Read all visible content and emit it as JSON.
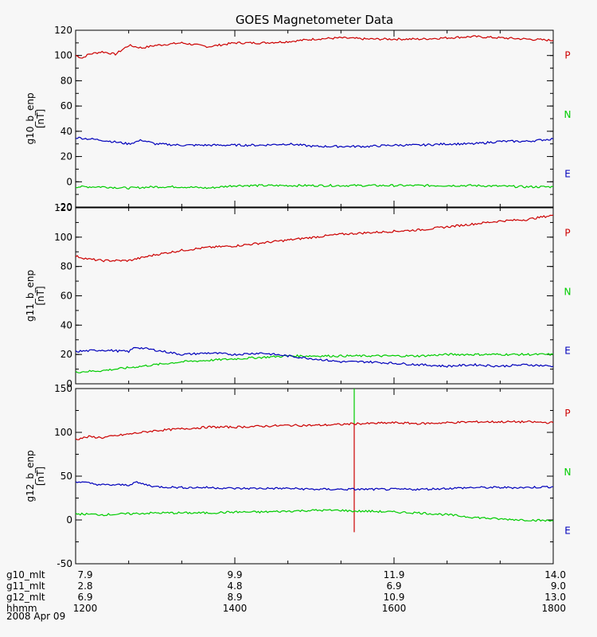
{
  "chart_data": {
    "type": "line",
    "title": "GOES Magnetometer Data",
    "x_unit": "hhmm (UT)",
    "panels": [
      {
        "id": "g10",
        "ylabel": "g10_b_enp",
        "yunit": "[nT]",
        "ylim": [
          -20,
          120
        ],
        "yticks": [
          -20,
          0,
          20,
          40,
          60,
          80,
          100,
          120
        ],
        "series": [
          {
            "name": "P",
            "color": "#cc0000",
            "x": [
              1200,
              1205,
              1210,
              1220,
              1230,
              1240,
              1250,
              1300,
              1320,
              1340,
              1400,
              1420,
              1440,
              1500,
              1520,
              1540,
              1600,
              1620,
              1640,
              1700,
              1720,
              1740,
              1800
            ],
            "y": [
              100,
              98,
              101,
              103,
              101,
              108,
              106,
              108,
              110,
              107,
              110,
              110,
              111,
              113,
              114,
              113,
              113,
              113,
              114,
              115,
              114,
              113,
              112
            ]
          },
          {
            "name": "N",
            "color": "#00cc00",
            "x": [
              1200,
              1220,
              1240,
              1300,
              1320,
              1340,
              1400,
              1440,
              1500,
              1540,
              1600,
              1640,
              1700,
              1740,
              1800
            ],
            "y": [
              -4,
              -4,
              -5,
              -4,
              -4,
              -5,
              -3,
              -3,
              -3,
              -3,
              -3,
              -3,
              -3,
              -4,
              -4
            ]
          },
          {
            "name": "E",
            "color": "#0000bb",
            "x": [
              1200,
              1210,
              1220,
              1240,
              1250,
              1300,
              1320,
              1340,
              1400,
              1420,
              1440,
              1500,
              1520,
              1540,
              1600,
              1620,
              1640,
              1700,
              1720,
              1740,
              1800
            ],
            "y": [
              35,
              34,
              33,
              30,
              33,
              30,
              29,
              29,
              29,
              29,
              30,
              28,
              28,
              28,
              29,
              29,
              30,
              30,
              32,
              32,
              34
            ]
          }
        ]
      },
      {
        "id": "g11",
        "ylabel": "g11_b_enp",
        "yunit": "[nT]",
        "ylim": [
          0,
          120
        ],
        "yticks": [
          0,
          20,
          40,
          60,
          80,
          100,
          120
        ],
        "series": [
          {
            "name": "P",
            "color": "#cc0000",
            "x": [
              1200,
              1210,
              1220,
              1240,
              1300,
              1320,
              1340,
              1400,
              1420,
              1440,
              1500,
              1520,
              1540,
              1600,
              1620,
              1640,
              1700,
              1720,
              1740,
              1800
            ],
            "y": [
              87,
              85,
              84,
              84,
              88,
              91,
              93,
              94,
              96,
              98,
              100,
              102,
              103,
              104,
              105,
              107,
              109,
              111,
              112,
              115
            ]
          },
          {
            "name": "N",
            "color": "#00cc00",
            "x": [
              1200,
              1220,
              1240,
              1300,
              1320,
              1340,
              1400,
              1420,
              1440,
              1500,
              1520,
              1540,
              1600,
              1620,
              1640,
              1700,
              1720,
              1740,
              1800
            ],
            "y": [
              8,
              9,
              11,
              13,
              15,
              16,
              17,
              18,
              19,
              19,
              19,
              19,
              19,
              19,
              20,
              20,
              20,
              20,
              20
            ]
          },
          {
            "name": "E",
            "color": "#0000bb",
            "x": [
              1200,
              1220,
              1240,
              1245,
              1300,
              1320,
              1340,
              1400,
              1420,
              1440,
              1500,
              1520,
              1540,
              1600,
              1620,
              1640,
              1700,
              1720,
              1740,
              1800
            ],
            "y": [
              22,
              23,
              22,
              25,
              23,
              20,
              21,
              20,
              21,
              19,
              17,
              15,
              15,
              14,
              13,
              12,
              13,
              12,
              13,
              12
            ]
          }
        ]
      },
      {
        "id": "g12",
        "ylabel": "g12_b_enp",
        "yunit": "[nT]",
        "ylim": [
          -50,
          150
        ],
        "yticks": [
          -50,
          0,
          50,
          100,
          150
        ],
        "series": [
          {
            "name": "P",
            "color": "#cc0000",
            "x": [
              1200,
              1210,
              1220,
              1240,
              1300,
              1320,
              1340,
              1400,
              1420,
              1440,
              1500,
              1520,
              1530,
              1540,
              1600,
              1620,
              1640,
              1700,
              1720,
              1740,
              1800
            ],
            "y": [
              92,
              95,
              94,
              98,
              102,
              104,
              106,
              106,
              107,
              108,
              108,
              109,
              110,
              110,
              111,
              110,
              111,
              112,
              112,
              112,
              111
            ],
            "spike": {
              "x": 1530,
              "low": -14,
              "high": 110
            }
          },
          {
            "name": "N",
            "color": "#00cc00",
            "x": [
              1200,
              1220,
              1240,
              1300,
              1320,
              1340,
              1400,
              1420,
              1440,
              1500,
              1520,
              1530,
              1540,
              1600,
              1620,
              1640,
              1700,
              1720,
              1740,
              1800
            ],
            "y": [
              7,
              6,
              7,
              8,
              8,
              8,
              9,
              9,
              10,
              11,
              11,
              10,
              10,
              9,
              8,
              6,
              3,
              1,
              0,
              -1
            ],
            "spike": {
              "x": 1530,
              "low": 110,
              "high": 150
            }
          },
          {
            "name": "E",
            "color": "#0000bb",
            "x": [
              1200,
              1210,
              1220,
              1240,
              1245,
              1300,
              1320,
              1340,
              1400,
              1420,
              1440,
              1500,
              1520,
              1540,
              1600,
              1620,
              1640,
              1700,
              1720,
              1740,
              1800
            ],
            "y": [
              44,
              42,
              40,
              40,
              43,
              38,
              37,
              37,
              36,
              36,
              36,
              35,
              35,
              35,
              35,
              35,
              36,
              37,
              37,
              37,
              38
            ]
          }
        ]
      }
    ],
    "x_axis": {
      "min": 1200,
      "max": 1800,
      "rows": [
        {
          "label": "g10_mlt",
          "values": [
            "7.9",
            "9.9",
            "11.9",
            "14.0"
          ]
        },
        {
          "label": "g11_mlt",
          "values": [
            "2.8",
            "4.8",
            "6.9",
            "9.0"
          ]
        },
        {
          "label": "g12_mlt",
          "values": [
            "6.9",
            "8.9",
            "10.9",
            "13.0"
          ]
        },
        {
          "label": "hhmm",
          "values": [
            "1200",
            "1400",
            "1600",
            "1800"
          ]
        }
      ],
      "tick_positions": [
        1200,
        1400,
        1600,
        1800
      ],
      "date": "2008 Apr 09"
    },
    "legend": {
      "placement": "right",
      "entries": [
        "P",
        "N",
        "E"
      ]
    }
  }
}
